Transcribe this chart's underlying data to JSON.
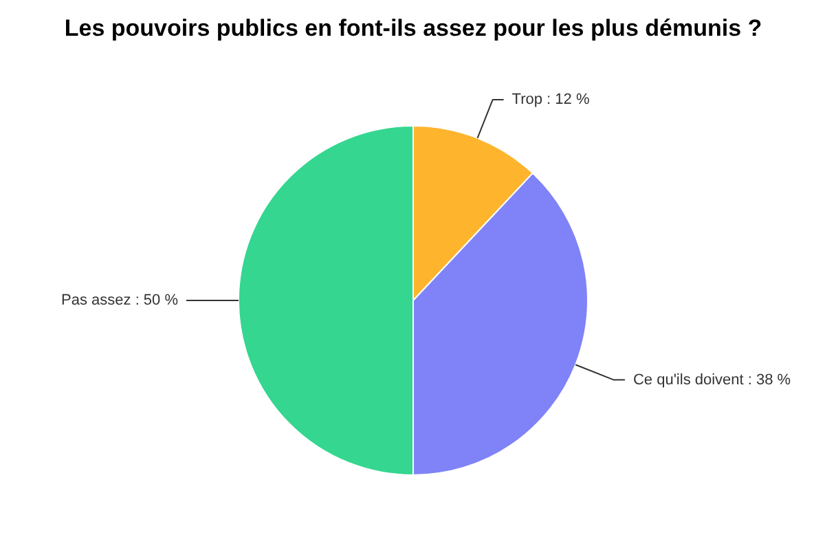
{
  "chart_data": {
    "type": "pie",
    "title": "Les pouvoirs publics en font-ils assez pour les plus démunis ?",
    "categories": [
      "Trop",
      "Ce qu'ils doivent",
      "Pas assez"
    ],
    "values": [
      12,
      38,
      50
    ],
    "colors": [
      "#feb42c",
      "#7f83f7",
      "#34d690"
    ],
    "value_labels": [
      "12 %",
      "38 %",
      "50 %"
    ]
  }
}
